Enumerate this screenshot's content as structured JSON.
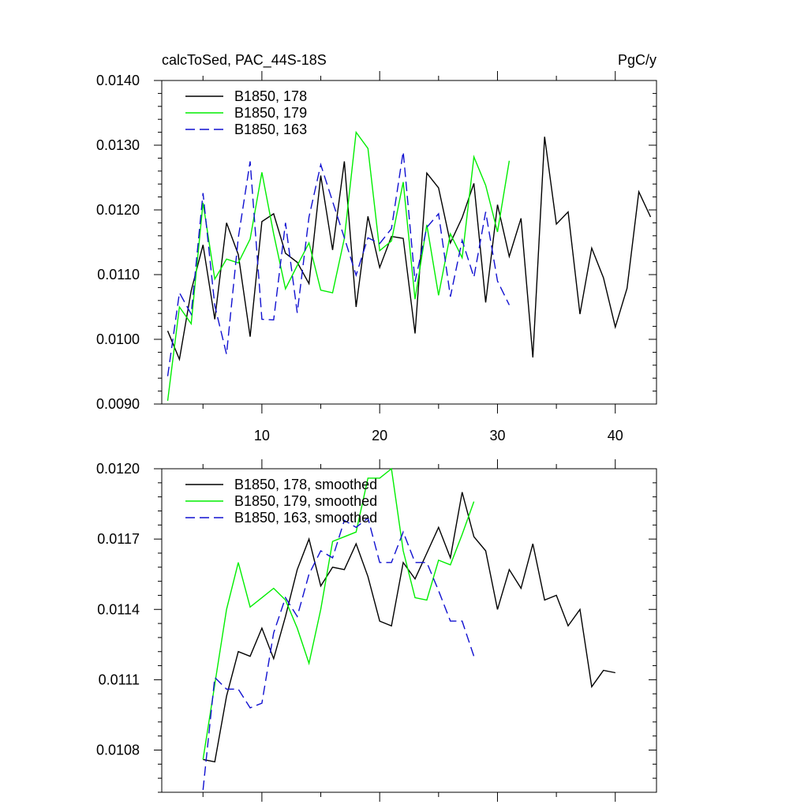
{
  "chart_data": [
    {
      "type": "line",
      "title": "calcToSed, PAC_44S-18S",
      "units": "PgC/y",
      "xlabel": "",
      "ylabel": "",
      "xlim": [
        1.5,
        43.5
      ],
      "ylim": [
        0.009,
        0.014
      ],
      "xticks": [
        10,
        20,
        30,
        40
      ],
      "xtick_labels": [
        "10",
        "20",
        "30",
        "40"
      ],
      "yticks": [
        0.009,
        0.01,
        0.011,
        0.012,
        0.013,
        0.014
      ],
      "ytick_labels": [
        "0.0090",
        "0.0100",
        "0.0110",
        "0.0120",
        "0.0130",
        "0.0140"
      ],
      "legend_position": "top-left",
      "series": [
        {
          "name": "B1850, 178",
          "color": "#000000",
          "dash": "solid",
          "x": [
            2,
            3,
            4,
            5,
            6,
            7,
            8,
            9,
            10,
            11,
            12,
            13,
            14,
            15,
            16,
            17,
            18,
            19,
            20,
            21,
            22,
            23,
            24,
            25,
            26,
            27,
            28,
            29,
            30,
            31,
            32,
            33,
            34,
            35,
            36,
            37,
            38,
            39,
            40,
            41,
            42,
            43
          ],
          "values": [
            0.01013,
            0.00969,
            0.01075,
            0.01146,
            0.01031,
            0.0118,
            0.01131,
            0.01004,
            0.01182,
            0.01194,
            0.01133,
            0.01119,
            0.01086,
            0.01253,
            0.01138,
            0.01275,
            0.0105,
            0.0119,
            0.01111,
            0.01159,
            0.01156,
            0.01009,
            0.01257,
            0.01234,
            0.01149,
            0.01188,
            0.01241,
            0.01057,
            0.01208,
            0.01128,
            0.01187,
            0.00972,
            0.01313,
            0.01178,
            0.01197,
            0.01039,
            0.01141,
            0.01095,
            0.01019,
            0.01079,
            0.01228,
            0.01189
          ]
        },
        {
          "name": "B1850, 179",
          "color": "#00ee00",
          "dash": "solid",
          "x": [
            2,
            3,
            4,
            5,
            6,
            7,
            8,
            9,
            10,
            11,
            12,
            13,
            14,
            15,
            16,
            17,
            18,
            19,
            20,
            21,
            22,
            23,
            24,
            25,
            26,
            27,
            28,
            29,
            30,
            31
          ],
          "values": [
            0.00905,
            0.0105,
            0.01024,
            0.01211,
            0.01093,
            0.01124,
            0.01118,
            0.01155,
            0.01258,
            0.01163,
            0.01078,
            0.01114,
            0.01149,
            0.01076,
            0.01072,
            0.01156,
            0.0132,
            0.01295,
            0.01137,
            0.01152,
            0.01243,
            0.01062,
            0.01177,
            0.01068,
            0.01163,
            0.01126,
            0.01282,
            0.01238,
            0.01166,
            0.01276
          ]
        },
        {
          "name": "B1850, 163",
          "color": "#1010d0",
          "dash": "dashed",
          "x": [
            2,
            3,
            4,
            5,
            6,
            7,
            8,
            9,
            10,
            11,
            12,
            13,
            14,
            15,
            16,
            17,
            18,
            19,
            20,
            21,
            22,
            23,
            24,
            25,
            26,
            27,
            28,
            29,
            30,
            31
          ],
          "values": [
            0.00943,
            0.01072,
            0.01039,
            0.01226,
            0.01052,
            0.00977,
            0.01157,
            0.01275,
            0.01031,
            0.0103,
            0.0118,
            0.01041,
            0.01189,
            0.0127,
            0.01213,
            0.01157,
            0.01099,
            0.01157,
            0.01148,
            0.01171,
            0.0129,
            0.01089,
            0.01173,
            0.01194,
            0.01066,
            0.01153,
            0.01096,
            0.01197,
            0.0109,
            0.01053
          ]
        }
      ]
    },
    {
      "type": "line",
      "title": "",
      "xlabel": "",
      "ylabel": "",
      "xlim": [
        1.5,
        43.5
      ],
      "ylim": [
        0.01062,
        0.012
      ],
      "xticks": [
        10,
        20,
        30,
        40
      ],
      "xtick_labels": [],
      "yticks": [
        0.0108,
        0.0111,
        0.0114,
        0.0117,
        0.012
      ],
      "ytick_labels": [
        "0.0108",
        "0.0111",
        "0.0114",
        "0.0117",
        "0.0120"
      ],
      "legend_position": "top-left",
      "series": [
        {
          "name": "B1850, 178, smoothed",
          "color": "#000000",
          "dash": "solid",
          "x": [
            5,
            6,
            7,
            8,
            9,
            10,
            11,
            12,
            13,
            14,
            15,
            16,
            17,
            18,
            19,
            20,
            21,
            22,
            23,
            24,
            25,
            26,
            27,
            28,
            29,
            30,
            31,
            32,
            33,
            34,
            35,
            36,
            37,
            38,
            39,
            40
          ],
          "values": [
            0.01076,
            0.01075,
            0.01103,
            0.01122,
            0.0112,
            0.01132,
            0.01119,
            0.01137,
            0.01157,
            0.0117,
            0.0115,
            0.01158,
            0.01157,
            0.01168,
            0.01154,
            0.01135,
            0.01133,
            0.0116,
            0.01153,
            0.01164,
            0.01175,
            0.01162,
            0.0119,
            0.01171,
            0.01165,
            0.0114,
            0.01157,
            0.01149,
            0.01168,
            0.01144,
            0.01146,
            0.01133,
            0.0114,
            0.01107,
            0.01114,
            0.01113
          ]
        },
        {
          "name": "B1850, 179, smoothed",
          "color": "#00ee00",
          "dash": "solid",
          "x": [
            5,
            6,
            7,
            8,
            9,
            10,
            11,
            12,
            13,
            14,
            15,
            16,
            17,
            18,
            19,
            20,
            21,
            22,
            23,
            24,
            25,
            26,
            27,
            28
          ],
          "values": [
            0.01076,
            0.01108,
            0.0114,
            0.0116,
            0.01141,
            0.01145,
            0.01149,
            0.01144,
            0.01132,
            0.01117,
            0.0114,
            0.01169,
            0.01171,
            0.01173,
            0.01196,
            0.01196,
            0.012,
            0.01165,
            0.01145,
            0.01144,
            0.01161,
            0.01159,
            0.01172,
            0.01186
          ]
        },
        {
          "name": "B1850, 163, smoothed",
          "color": "#1010d0",
          "dash": "dashed",
          "x": [
            5,
            6,
            7,
            8,
            9,
            10,
            11,
            12,
            13,
            14,
            15,
            16,
            17,
            18,
            19,
            20,
            21,
            22,
            23,
            24,
            25,
            26,
            27,
            28
          ],
          "values": [
            0.01063,
            0.01111,
            0.01106,
            0.01106,
            0.01098,
            0.011,
            0.0113,
            0.01145,
            0.01137,
            0.01155,
            0.01165,
            0.01162,
            0.01178,
            0.01175,
            0.01179,
            0.0116,
            0.0116,
            0.01173,
            0.0116,
            0.0116,
            0.01148,
            0.01135,
            0.01135,
            0.0112
          ]
        }
      ]
    }
  ]
}
